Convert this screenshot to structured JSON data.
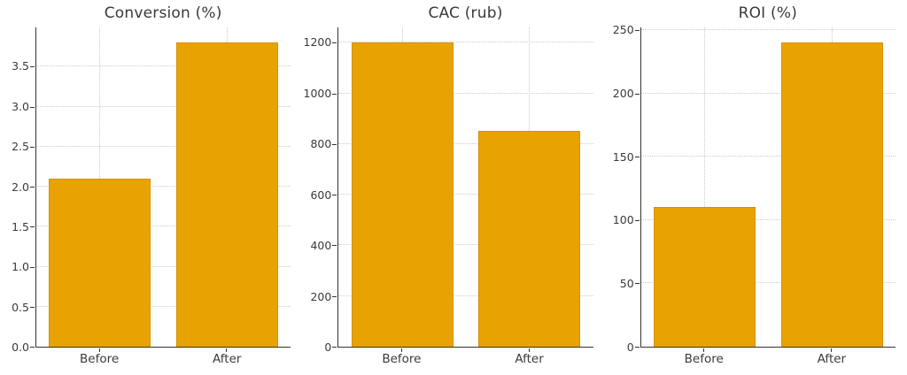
{
  "page": {
    "background": "#ffffff"
  },
  "colors": {
    "bar_fill": "#E8A202",
    "bar_edge": "#D69102",
    "grid": "#cbcbcb",
    "axis": "#333333",
    "text": "#3a3a3a"
  },
  "chart_data": [
    {
      "type": "bar",
      "title": "Conversion (%)",
      "categories": [
        "Before",
        "After"
      ],
      "values": [
        2.1,
        3.8
      ],
      "ylim": [
        0,
        3.99
      ],
      "yticks": [
        0,
        0.5,
        1.0,
        1.5,
        2.0,
        2.5,
        3.0,
        3.5
      ],
      "ytick_labels": [
        "0.0",
        "0.5",
        "1.0",
        "1.5",
        "2.0",
        "2.5",
        "3.0",
        "3.5"
      ],
      "xlabel": "",
      "ylabel": "",
      "grid": true,
      "legend_position": "none"
    },
    {
      "type": "bar",
      "title": "CAC (rub)",
      "categories": [
        "Before",
        "After"
      ],
      "values": [
        1200,
        850
      ],
      "ylim": [
        0,
        1260
      ],
      "yticks": [
        0,
        200,
        400,
        600,
        800,
        1000,
        1200
      ],
      "ytick_labels": [
        "0",
        "200",
        "400",
        "600",
        "800",
        "1000",
        "1200"
      ],
      "xlabel": "",
      "ylabel": "",
      "grid": true,
      "legend_position": "none"
    },
    {
      "type": "bar",
      "title": "ROI (%)",
      "categories": [
        "Before",
        "After"
      ],
      "values": [
        110,
        240
      ],
      "ylim": [
        0,
        252
      ],
      "yticks": [
        0,
        50,
        100,
        150,
        200,
        250
      ],
      "ytick_labels": [
        "0",
        "50",
        "100",
        "150",
        "200",
        "250"
      ],
      "xlabel": "",
      "ylabel": "",
      "grid": true,
      "legend_position": "none"
    }
  ]
}
